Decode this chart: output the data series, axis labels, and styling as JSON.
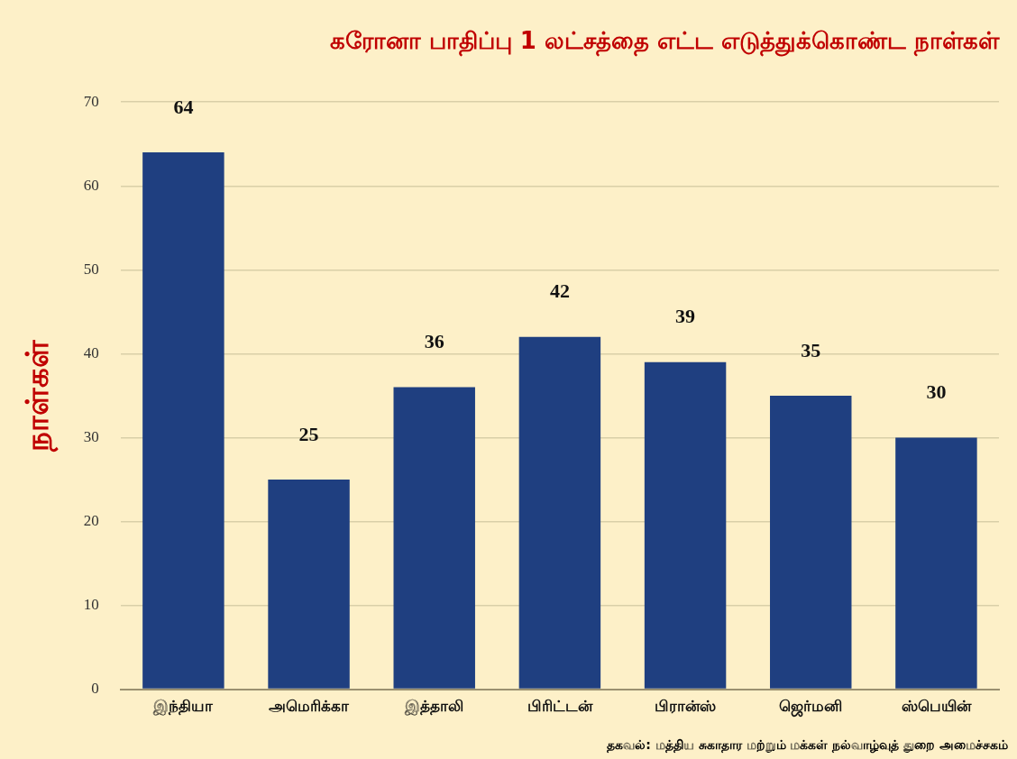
{
  "chart_data": {
    "type": "bar",
    "title": "கரோனா பாதிப்பு 1 லட்சத்தை எட்ட எடுத்துக்கொண்ட நாள்கள்",
    "ylabel": "நாள்கள்",
    "categories": [
      "இந்தியா",
      "அமெரிக்கா",
      "இத்தாலி",
      "பிரிட்டன்",
      "பிரான்ஸ்",
      "ஜெர்மனி",
      "ஸ்பெயின்"
    ],
    "values": [
      64,
      25,
      36,
      42,
      39,
      35,
      30
    ],
    "color": "#1f3f80",
    "ylim": [
      0,
      70
    ],
    "yticks": [
      0,
      10,
      20,
      30,
      40,
      50,
      60,
      70
    ],
    "grid": "y",
    "data_labels": true,
    "legend": false,
    "annotations": [
      "தகவல்: மத்திய சுகாதார மற்றும் மக்கள் நல்வாழ்வுத் துறை அமைச்சகம்"
    ]
  }
}
